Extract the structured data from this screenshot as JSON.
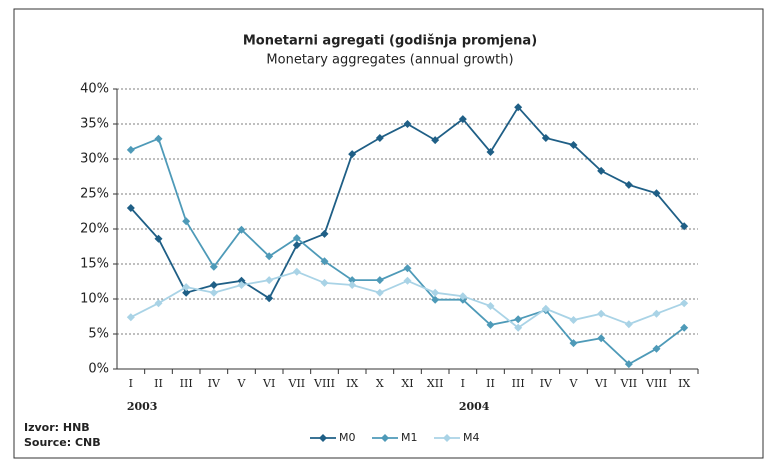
{
  "chart_data": {
    "type": "line",
    "title": "Monetarni agregati (godišnja promjena)",
    "subtitle": "Monetary aggregates (annual growth)",
    "categories": [
      "I",
      "II",
      "III",
      "IV",
      "V",
      "VI",
      "VII",
      "VIII",
      "IX",
      "X",
      "XI",
      "XII",
      "I",
      "II",
      "III",
      "IV",
      "V",
      "VI",
      "VII",
      "VIII",
      "IX"
    ],
    "years": [
      "2003",
      "2004"
    ],
    "series": [
      {
        "name": "M0",
        "color": "#1f5f86",
        "values": [
          23.0,
          18.6,
          10.9,
          12.0,
          12.6,
          10.1,
          17.7,
          19.3,
          30.7,
          33.0,
          35.0,
          32.7,
          35.7,
          31.0,
          37.4,
          33.0,
          32.0,
          28.3,
          26.3,
          25.1,
          20.4
        ]
      },
      {
        "name": "M1",
        "color": "#4e9ab8",
        "values": [
          31.3,
          32.9,
          21.1,
          14.6,
          19.9,
          16.1,
          18.7,
          15.4,
          12.7,
          12.7,
          14.4,
          9.9,
          9.9,
          6.3,
          7.1,
          8.4,
          3.7,
          4.4,
          0.7,
          2.9,
          5.9
        ]
      },
      {
        "name": "M4",
        "color": "#a9d3e6",
        "values": [
          7.4,
          9.4,
          11.7,
          10.9,
          12.0,
          12.7,
          13.9,
          12.3,
          12.0,
          10.9,
          12.6,
          10.9,
          10.4,
          9.0,
          5.9,
          8.6,
          7.0,
          7.9,
          6.4,
          7.9,
          9.4
        ]
      }
    ],
    "ylim": [
      0,
      40
    ],
    "yticks": [
      {
        "value": 0,
        "label": "0%"
      },
      {
        "value": 5,
        "label": "5%"
      },
      {
        "value": 10,
        "label": "10%"
      },
      {
        "value": 15,
        "label": "15%"
      },
      {
        "value": 20,
        "label": "20%"
      },
      {
        "value": 25,
        "label": "25%"
      },
      {
        "value": 30,
        "label": "30%"
      },
      {
        "value": 35,
        "label": "35%"
      },
      {
        "value": 40,
        "label": "40%"
      }
    ],
    "grid": true,
    "source": [
      "Izvor: HNB",
      "Source: CNB"
    ]
  }
}
